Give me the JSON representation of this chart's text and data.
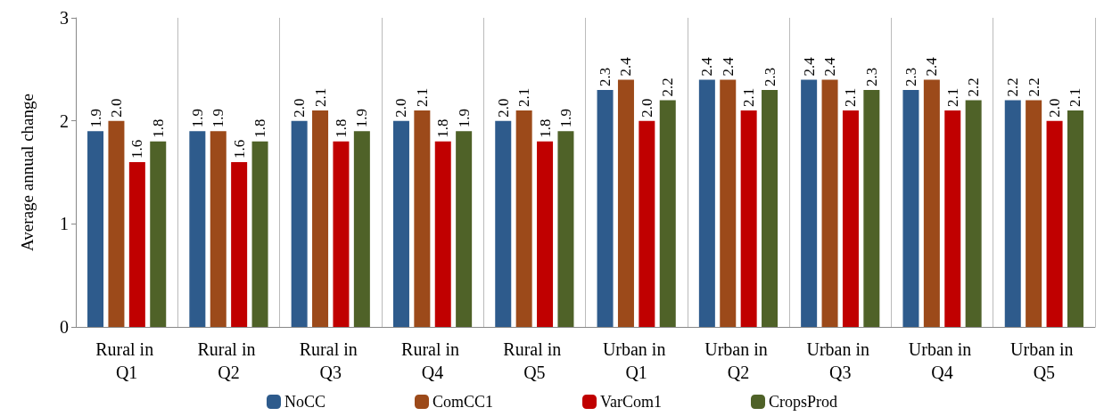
{
  "chart_data": {
    "type": "bar",
    "ylabel": "Average annual change",
    "categories": [
      "Rural in Q1",
      "Rural in Q2",
      "Rural in Q3",
      "Rural in Q4",
      "Rural in Q5",
      "Urban in Q1",
      "Urban in Q2",
      "Urban in Q3",
      "Urban in Q4",
      "Urban in Q5"
    ],
    "series": [
      {
        "name": "NoCC",
        "color": "#2e5b8c",
        "values": [
          1.9,
          1.9,
          2,
          2,
          2,
          2.3,
          2.4,
          2.4,
          2.3,
          2.2
        ],
        "value_labels": [
          "1.9",
          "1.9",
          "2.0",
          "2.0",
          "2.0",
          "2.3",
          "2.4",
          "2.4",
          "2.3",
          "2.2"
        ]
      },
      {
        "name": "ComCC1",
        "color": "#9c4a1a",
        "values": [
          2,
          1.9,
          2.1,
          2.1,
          2.1,
          2.4,
          2.4,
          2.4,
          2.4,
          2.2
        ],
        "value_labels": [
          "2.0",
          "1.9",
          "2.1",
          "2.1",
          "2.1",
          "2.4",
          "2.4",
          "2.4",
          "2.4",
          "2.2"
        ]
      },
      {
        "name": "VarCom1",
        "color": "#c00000",
        "values": [
          1.6,
          1.6,
          1.8,
          1.8,
          1.8,
          2,
          2.1,
          2.1,
          2.1,
          2
        ],
        "value_labels": [
          "1.6",
          "1.6",
          "1.8",
          "1.8",
          "1.8",
          "2.0",
          "2.1",
          "2.1",
          "2.1",
          "2.0"
        ]
      },
      {
        "name": "CropsProd",
        "color": "#4f6228",
        "values": [
          1.8,
          1.8,
          1.9,
          1.9,
          1.9,
          2.2,
          2.3,
          2.3,
          2.2,
          2.1
        ],
        "value_labels": [
          "1.8",
          "1.8",
          "1.9",
          "1.9",
          "1.9",
          "2.2",
          "2.3",
          "2.3",
          "2.2",
          "2.1"
        ]
      }
    ],
    "ylim": [
      0,
      3
    ],
    "yticks": [
      0,
      1,
      2,
      3
    ],
    "grid": "x",
    "legend": "bottom"
  }
}
